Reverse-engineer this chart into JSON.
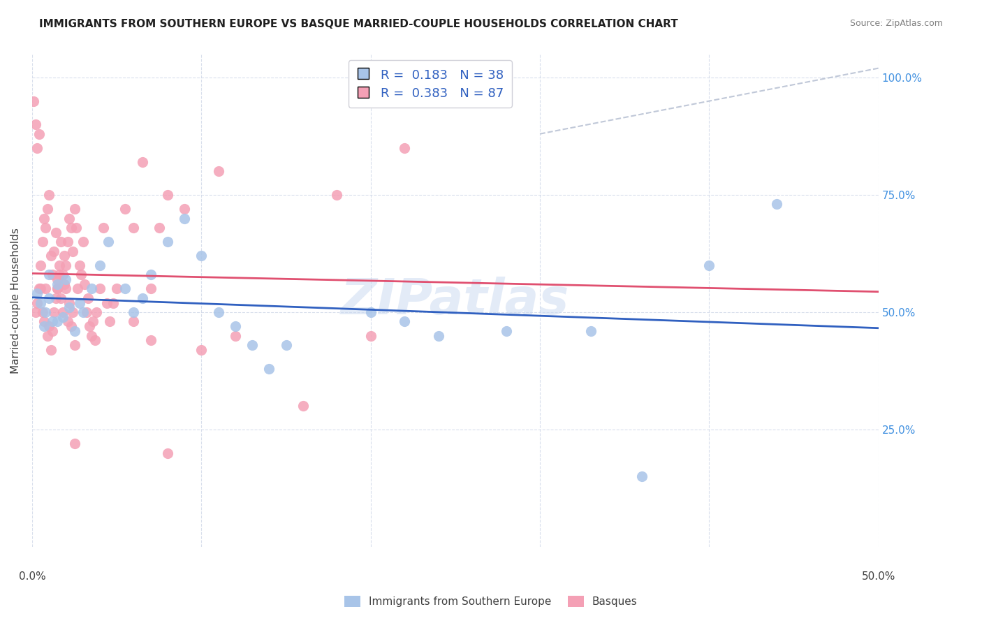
{
  "title": "IMMIGRANTS FROM SOUTHERN EUROPE VS BASQUE MARRIED-COUPLE HOUSEHOLDS CORRELATION CHART",
  "source": "Source: ZipAtlas.com",
  "ylabel": "Married-couple Households",
  "yaxis_ticks": [
    "100.0%",
    "75.0%",
    "50.0%",
    "25.0%"
  ],
  "xlim": [
    0.0,
    0.5
  ],
  "ylim": [
    0.0,
    1.05
  ],
  "blue_R": 0.183,
  "blue_N": 38,
  "pink_R": 0.383,
  "pink_N": 87,
  "blue_color": "#a8c4e8",
  "pink_color": "#f4a0b5",
  "blue_line_color": "#3060c0",
  "pink_line_color": "#e05070",
  "dashed_line_color": "#c0c8d8",
  "legend_label_blue": "Immigrants from Southern Europe",
  "legend_label_pink": "Basques",
  "watermark": "ZIPatlas",
  "blue_scatter_x": [
    0.008,
    0.012,
    0.005,
    0.015,
    0.003,
    0.01,
    0.007,
    0.018,
    0.022,
    0.025,
    0.03,
    0.035,
    0.01,
    0.028,
    0.02,
    0.015,
    0.04,
    0.045,
    0.055,
    0.06,
    0.065,
    0.07,
    0.08,
    0.09,
    0.1,
    0.11,
    0.12,
    0.13,
    0.14,
    0.15,
    0.2,
    0.22,
    0.24,
    0.28,
    0.33,
    0.36,
    0.4,
    0.44
  ],
  "blue_scatter_y": [
    0.5,
    0.48,
    0.52,
    0.56,
    0.54,
    0.53,
    0.47,
    0.49,
    0.51,
    0.46,
    0.5,
    0.55,
    0.58,
    0.52,
    0.57,
    0.48,
    0.6,
    0.65,
    0.55,
    0.5,
    0.53,
    0.58,
    0.65,
    0.7,
    0.62,
    0.5,
    0.47,
    0.43,
    0.38,
    0.43,
    0.5,
    0.48,
    0.45,
    0.46,
    0.46,
    0.15,
    0.6,
    0.73
  ],
  "pink_scatter_x": [
    0.002,
    0.003,
    0.004,
    0.005,
    0.006,
    0.007,
    0.008,
    0.009,
    0.01,
    0.011,
    0.012,
    0.013,
    0.014,
    0.015,
    0.016,
    0.017,
    0.018,
    0.019,
    0.02,
    0.021,
    0.022,
    0.023,
    0.024,
    0.025,
    0.026,
    0.027,
    0.028,
    0.029,
    0.03,
    0.031,
    0.032,
    0.033,
    0.034,
    0.035,
    0.036,
    0.037,
    0.038,
    0.04,
    0.042,
    0.044,
    0.046,
    0.048,
    0.05,
    0.055,
    0.06,
    0.065,
    0.07,
    0.075,
    0.08,
    0.09,
    0.001,
    0.002,
    0.003,
    0.004,
    0.005,
    0.006,
    0.007,
    0.008,
    0.009,
    0.01,
    0.011,
    0.012,
    0.013,
    0.014,
    0.015,
    0.016,
    0.017,
    0.018,
    0.019,
    0.02,
    0.021,
    0.022,
    0.023,
    0.024,
    0.025,
    0.06,
    0.07,
    0.08,
    0.1,
    0.11,
    0.12,
    0.16,
    0.18,
    0.2,
    0.22,
    0.015,
    0.025
  ],
  "pink_scatter_y": [
    0.5,
    0.52,
    0.55,
    0.6,
    0.65,
    0.7,
    0.68,
    0.72,
    0.75,
    0.62,
    0.58,
    0.63,
    0.67,
    0.55,
    0.58,
    0.53,
    0.5,
    0.56,
    0.6,
    0.65,
    0.7,
    0.68,
    0.63,
    0.72,
    0.68,
    0.55,
    0.6,
    0.58,
    0.65,
    0.56,
    0.5,
    0.53,
    0.47,
    0.45,
    0.48,
    0.44,
    0.5,
    0.55,
    0.68,
    0.52,
    0.48,
    0.52,
    0.55,
    0.72,
    0.68,
    0.82,
    0.55,
    0.68,
    0.75,
    0.72,
    0.95,
    0.9,
    0.85,
    0.88,
    0.55,
    0.5,
    0.48,
    0.55,
    0.45,
    0.47,
    0.42,
    0.46,
    0.5,
    0.53,
    0.57,
    0.6,
    0.65,
    0.58,
    0.62,
    0.55,
    0.48,
    0.52,
    0.47,
    0.5,
    0.43,
    0.48,
    0.44,
    0.2,
    0.42,
    0.8,
    0.45,
    0.3,
    0.75,
    0.45,
    0.85,
    0.55,
    0.22
  ]
}
